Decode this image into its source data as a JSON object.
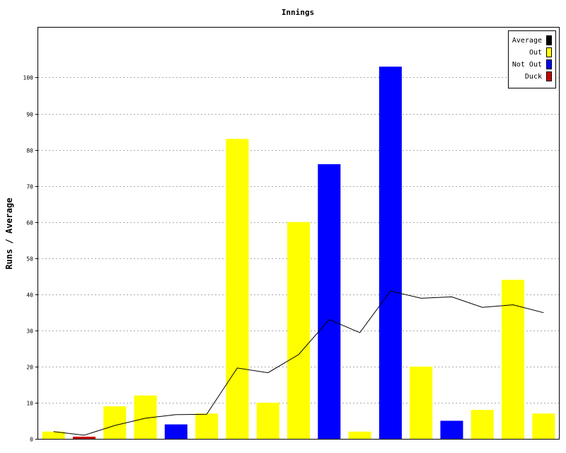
{
  "chart_data": {
    "type": "bar",
    "title": "Innings",
    "xlabel": "",
    "ylabel": "Runs / Average",
    "ylim": [
      0,
      114
    ],
    "yticks": [
      0,
      10,
      20,
      30,
      40,
      50,
      60,
      70,
      80,
      90,
      100
    ],
    "grid": true,
    "legend_position": "top-right",
    "legend": [
      {
        "label": "Average",
        "color": "#000000"
      },
      {
        "label": "Out",
        "color": "#ffff00"
      },
      {
        "label": "Not Out",
        "color": "#0000ff"
      },
      {
        "label": "Duck",
        "color": "#cc0000"
      }
    ],
    "bars": [
      {
        "value": 2,
        "status": "Out"
      },
      {
        "value": 0.6,
        "status": "Duck"
      },
      {
        "value": 9,
        "status": "Out"
      },
      {
        "value": 12,
        "status": "Out"
      },
      {
        "value": 4,
        "status": "Not Out"
      },
      {
        "value": 7,
        "status": "Out"
      },
      {
        "value": 83,
        "status": "Out"
      },
      {
        "value": 10,
        "status": "Out"
      },
      {
        "value": 60,
        "status": "Out"
      },
      {
        "value": 76,
        "status": "Not Out"
      },
      {
        "value": 2,
        "status": "Out"
      },
      {
        "value": 103,
        "status": "Not Out"
      },
      {
        "value": 20,
        "status": "Out"
      },
      {
        "value": 5,
        "status": "Not Out"
      },
      {
        "value": 8,
        "status": "Out"
      },
      {
        "value": 44,
        "status": "Out"
      },
      {
        "value": 7,
        "status": "Out"
      }
    ],
    "average_line": [
      2,
      1,
      3.7,
      5.7,
      6.7,
      6.8,
      19.6,
      18.3,
      23.3,
      33,
      29.4,
      40.9,
      38.9,
      39.3,
      36.4,
      37.1,
      34.9
    ]
  }
}
